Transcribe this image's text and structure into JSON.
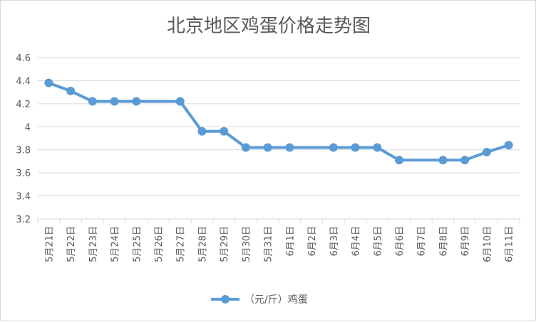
{
  "chart_data": {
    "type": "line",
    "title": "北京地区鸡蛋价格走势图",
    "xlabel": "",
    "ylabel": "",
    "ylim": [
      3.2,
      4.6
    ],
    "yticks": [
      "3.2",
      "3.4",
      "3.6",
      "3.8",
      "4",
      "4.2",
      "4.4",
      "4.6"
    ],
    "grid": true,
    "legend_position": "bottom",
    "categories": [
      "5月21日",
      "5月22日",
      "5月23日",
      "5月24日",
      "5月25日",
      "5月26日",
      "5月27日",
      "5月28日",
      "5月29日",
      "5月30日",
      "5月31日",
      "6月1日",
      "6月2日",
      "6月3日",
      "6月4日",
      "6月5日",
      "6月6日",
      "6月7日",
      "6月8日",
      "6月9日",
      "6月10日",
      "6月11日"
    ],
    "series": [
      {
        "name": "（元/斤）鸡蛋",
        "color": "#5b9bd5",
        "values": [
          4.38,
          4.31,
          4.22,
          4.22,
          4.22,
          null,
          4.22,
          3.96,
          3.96,
          3.82,
          3.82,
          3.82,
          null,
          3.82,
          3.82,
          3.82,
          3.71,
          null,
          3.71,
          3.71,
          3.78,
          3.84
        ]
      }
    ]
  }
}
